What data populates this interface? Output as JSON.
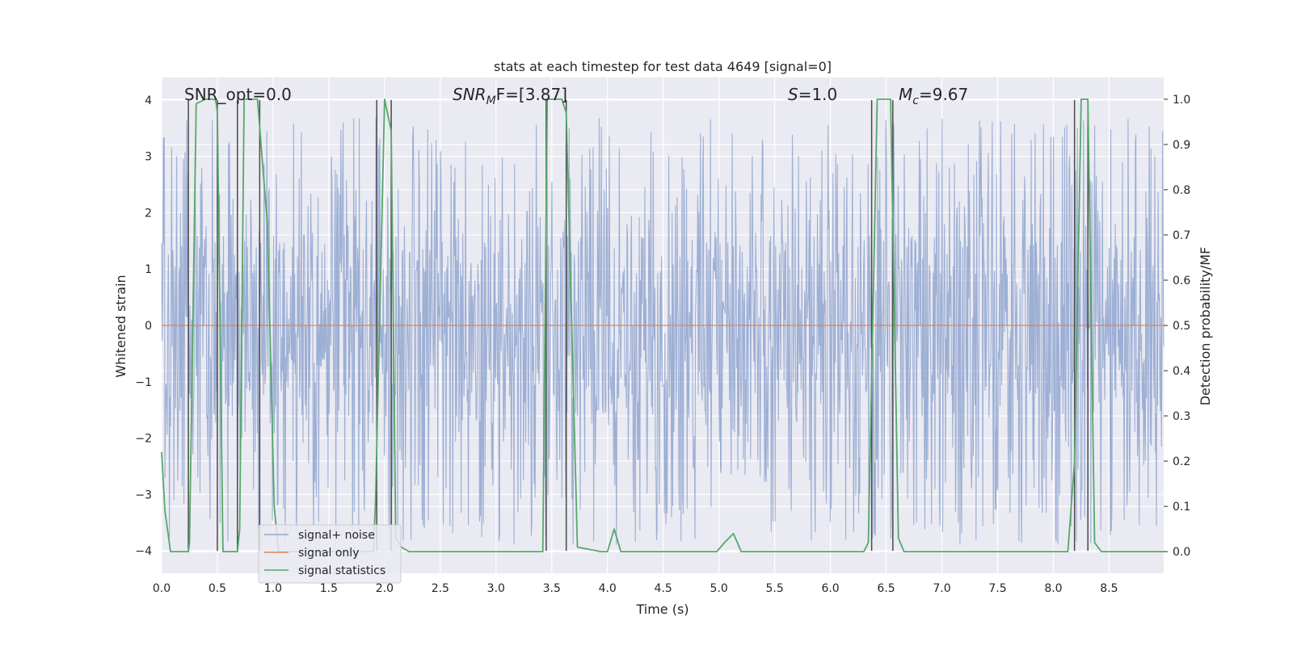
{
  "chart_data": {
    "type": "line",
    "title": "stats at each timestep for test data 4649 [signal=0]",
    "xlabel": "Time (s)",
    "ylabel_left": "Whitened strain",
    "ylabel_right": "Detection probability/MF",
    "xlim": [
      0.0,
      8.99
    ],
    "ylim_left": [
      -4.4,
      4.4
    ],
    "ylim_right": [
      -0.048,
      1.048
    ],
    "xticks": [
      0.0,
      0.5,
      1.0,
      1.5,
      2.0,
      2.5,
      3.0,
      3.5,
      4.0,
      4.5,
      5.0,
      5.5,
      6.0,
      6.5,
      7.0,
      7.5,
      8.0,
      8.5
    ],
    "xtick_labels": [
      "0.0",
      "0.5",
      "1.0",
      "1.5",
      "2.0",
      "2.5",
      "3.0",
      "3.5",
      "4.0",
      "4.5",
      "5.0",
      "5.5",
      "6.0",
      "6.5",
      "7.0",
      "7.5",
      "8.0",
      "8.5"
    ],
    "yticks_left": [
      -4,
      -3,
      -2,
      -1,
      0,
      1,
      2,
      3,
      4
    ],
    "ytick_labels_left": [
      "−4",
      "−3",
      "−2",
      "−1",
      "0",
      "1",
      "2",
      "3",
      "4"
    ],
    "yticks_right": [
      0.0,
      0.1,
      0.2,
      0.3,
      0.4,
      0.5,
      0.6,
      0.7,
      0.8,
      0.9,
      1.0
    ],
    "ytick_labels_right": [
      "0.0",
      "0.1",
      "0.2",
      "0.3",
      "0.4",
      "0.5",
      "0.6",
      "0.7",
      "0.8",
      "0.9",
      "1.0"
    ],
    "grid": true,
    "legend_position": "lower-left",
    "annotations": {
      "snr_opt": "SNR_opt=0.0",
      "snr_mf_base": "SNR",
      "snr_mf_sub": "M",
      "snr_mf_rest": "F=[3.87]",
      "s_base": "S",
      "s_rest": "=1.0",
      "mc_base": "M",
      "mc_sub": "c",
      "mc_rest": "=9.67"
    },
    "series": [
      {
        "name": "signal+ noise",
        "color": "#8fa5cf",
        "kind": "noise",
        "x_range": [
          0.0,
          8.99
        ],
        "envelope_typical": [
          -1.6,
          1.6
        ],
        "envelope_extreme": [
          -3.9,
          3.7
        ]
      },
      {
        "name": "signal only",
        "color": "#dd8452",
        "x": [
          0.0,
          8.99
        ],
        "y": [
          0.0,
          0.0
        ]
      },
      {
        "name": "signal statistics",
        "color": "#55a868",
        "x": [
          0.0,
          0.03,
          0.08,
          0.24,
          0.25,
          0.31,
          0.39,
          0.48,
          0.49,
          0.5,
          0.55,
          0.68,
          0.7,
          0.74,
          0.86,
          0.95,
          1.01,
          1.05,
          1.9,
          1.92,
          2.0,
          2.06,
          2.1,
          2.15,
          2.22,
          3.42,
          3.46,
          3.59,
          3.63,
          3.73,
          3.94,
          4.0,
          4.06,
          4.12,
          4.98,
          5.05,
          5.13,
          5.2,
          6.3,
          6.34,
          6.42,
          6.54,
          6.61,
          6.66,
          8.13,
          8.19,
          8.25,
          8.31,
          8.37,
          8.43,
          8.99
        ],
        "y": [
          0.22,
          0.09,
          0.0,
          0.0,
          0.02,
          0.99,
          1.0,
          1.0,
          0.99,
          0.97,
          0.0,
          0.0,
          0.05,
          1.0,
          1.0,
          0.72,
          0.1,
          0.0,
          0.0,
          0.12,
          1.0,
          0.93,
          0.03,
          0.01,
          0.0,
          0.0,
          1.0,
          1.0,
          0.97,
          0.01,
          0.0,
          0.0,
          0.05,
          0.0,
          0.0,
          0.02,
          0.04,
          0.0,
          0.0,
          0.02,
          1.0,
          1.0,
          0.03,
          0.0,
          0.0,
          0.2,
          1.0,
          1.0,
          0.02,
          0.0,
          0.0
        ]
      },
      {
        "name": "detection markers",
        "color": "#4a4a4a",
        "kind": "vlines",
        "x": [
          0.24,
          0.5,
          0.68,
          0.88,
          1.93,
          2.06,
          3.45,
          3.63,
          6.37,
          6.56,
          8.19,
          8.31
        ]
      }
    ]
  }
}
